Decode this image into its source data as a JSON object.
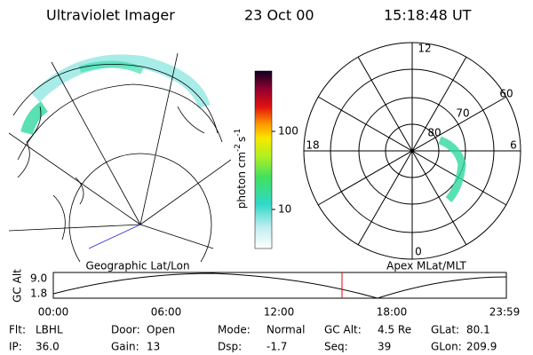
{
  "header": {
    "title": "Ultraviolet Imager",
    "date": "23 Oct 00",
    "time": "15:18:48 UT"
  },
  "colorbar": {
    "label": "photon cm",
    "label_exp1": "-2",
    "label_s": "s",
    "label_exp2": "-1",
    "ticks": [
      100,
      10
    ]
  },
  "left_panel": {
    "label": "Geographic Lat/Lon"
  },
  "right_panel": {
    "label": "Apex MLat/MLT",
    "hour_labels": [
      "12",
      "18",
      "6",
      "0"
    ],
    "lat_labels": [
      "60",
      "70",
      "80"
    ]
  },
  "altitude_plot": {
    "ylabel": "GC Alt",
    "yticks": [
      "9.0",
      "1.8"
    ],
    "xticks": [
      "00:00",
      "06:00",
      "12:00",
      "18:00",
      "23:59"
    ]
  },
  "footer": {
    "rows": [
      [
        {
          "label": "Flt:",
          "value": "LBHL"
        },
        {
          "label": "Door:",
          "value": "Open"
        },
        {
          "label": "Mode:",
          "value": "Normal"
        },
        {
          "label": "GC Alt:",
          "value": "4.5 Re"
        },
        {
          "label": "GLat:",
          "value": "80.1"
        }
      ],
      [
        {
          "label": "IP:",
          "value": "36.0"
        },
        {
          "label": "Gain:",
          "value": "13"
        },
        {
          "label": "Dsp:",
          "value": "-1.7"
        },
        {
          "label": "Seq:",
          "value": "39"
        },
        {
          "label": "GLon:",
          "value": "209.9"
        }
      ]
    ]
  }
}
